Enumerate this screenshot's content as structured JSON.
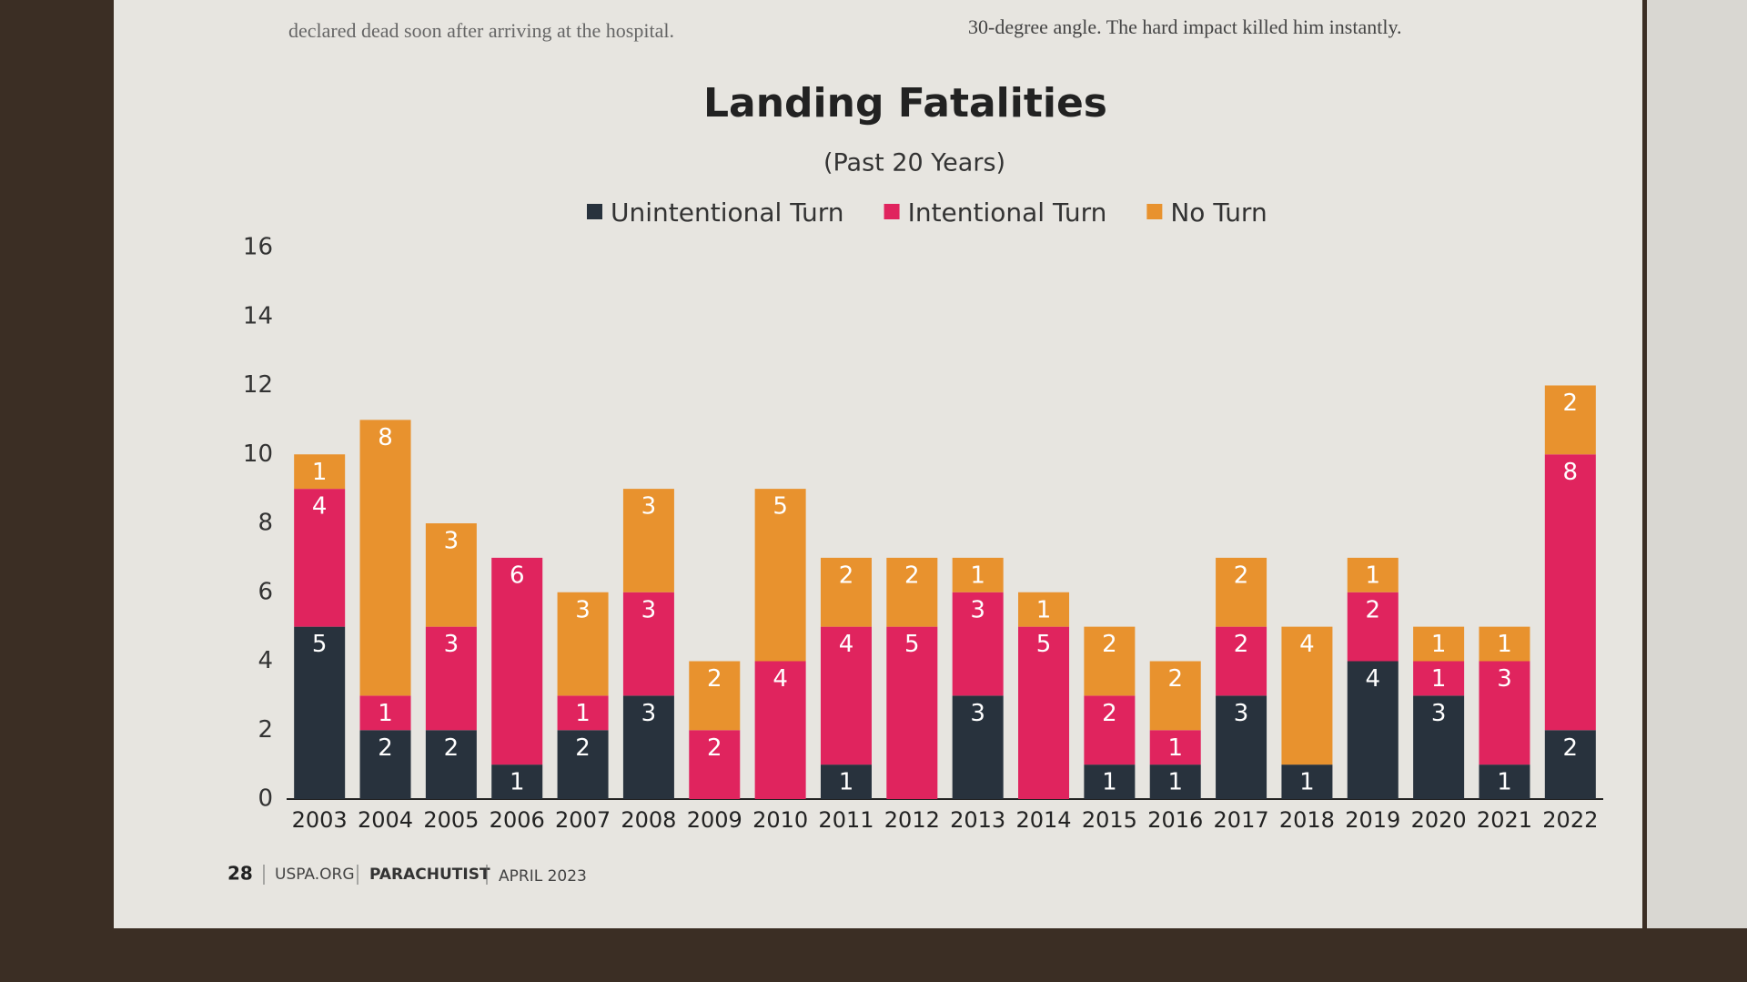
{
  "page_text": {
    "top_left": "declared dead soon after arriving at the hospital.",
    "top_right": "30-degree angle. The hard impact killed him instantly.",
    "page_number": "28",
    "site": "USPA.ORG",
    "magazine": "PARACHUTIST",
    "issue": "APRIL 2023"
  },
  "chart_data": {
    "type": "stacked_bar",
    "title": "Landing Fatalities",
    "subtitle": "(Past 20 Years)",
    "categories": [
      "2003",
      "2004",
      "2005",
      "2006",
      "2007",
      "2008",
      "2009",
      "2010",
      "2011",
      "2012",
      "2013",
      "2014",
      "2015",
      "2016",
      "2017",
      "2018",
      "2019",
      "2020",
      "2021",
      "2022"
    ],
    "series": [
      {
        "name": "Unintentional Turn",
        "color": "#28323d",
        "values": [
          5,
          2,
          2,
          1,
          2,
          3,
          null,
          null,
          1,
          null,
          3,
          null,
          1,
          1,
          3,
          1,
          4,
          3,
          1,
          2
        ]
      },
      {
        "name": "Intentional Turn",
        "color": "#e0245e",
        "values": [
          4,
          1,
          3,
          6,
          1,
          3,
          2,
          4,
          4,
          5,
          3,
          5,
          2,
          1,
          2,
          null,
          2,
          1,
          3,
          8
        ]
      },
      {
        "name": "No Turn",
        "color": "#e8922e",
        "values": [
          1,
          8,
          3,
          null,
          3,
          3,
          2,
          5,
          2,
          2,
          1,
          1,
          2,
          2,
          2,
          4,
          1,
          1,
          1,
          2
        ]
      }
    ],
    "ylim": [
      0,
      16
    ],
    "yticks": [
      0,
      2,
      4,
      6,
      8,
      10,
      12,
      14,
      16
    ],
    "grid": false,
    "legend": "top"
  }
}
